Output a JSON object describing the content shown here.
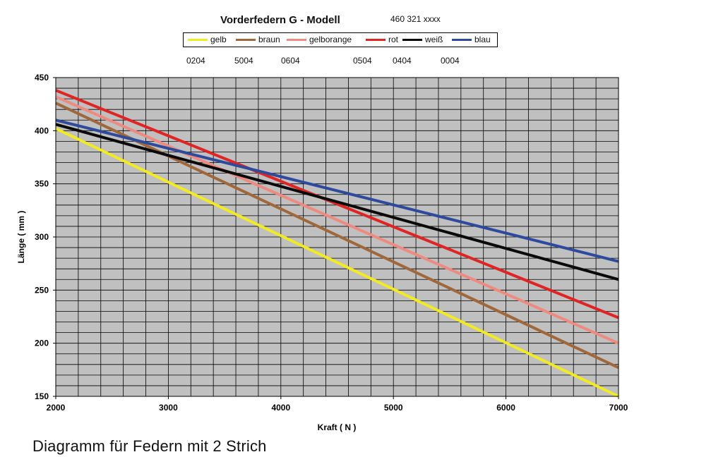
{
  "header": {
    "title": "Vorderfedern G - Modell",
    "part_number": "460 321 xxxx"
  },
  "legend": [
    {
      "label": "gelb",
      "color": "#f2ea22"
    },
    {
      "label": "braun",
      "color": "#a0683a"
    },
    {
      "label": "gelborange",
      "color": "#ef8a80"
    },
    {
      "label": "rot",
      "color": "#e02424"
    },
    {
      "label": "weiß",
      "color": "#0a0a0a"
    },
    {
      "label": "blau",
      "color": "#2e4a9c"
    }
  ],
  "codes": [
    "0204",
    "5004",
    "0604",
    "0504",
    "0404",
    "0004"
  ],
  "chart_data": {
    "type": "line",
    "title": "Vorderfedern G - Modell",
    "xlabel": "Kraft ( N )",
    "ylabel": "Länge ( mm )",
    "xlim": [
      2000,
      7000
    ],
    "ylim": [
      150,
      450
    ],
    "xticks": [
      2000,
      3000,
      4000,
      5000,
      6000,
      7000
    ],
    "yticks": [
      150,
      200,
      250,
      300,
      350,
      400,
      450
    ],
    "grid": true,
    "plot_background": "#c0c0c0",
    "series": [
      {
        "name": "gelb",
        "color": "#f2ea22",
        "x": [
          2000,
          7000
        ],
        "values": [
          402,
          150
        ]
      },
      {
        "name": "braun",
        "color": "#a0683a",
        "x": [
          2000,
          7000
        ],
        "values": [
          426,
          177
        ]
      },
      {
        "name": "gelborange",
        "color": "#ef8a80",
        "x": [
          2000,
          7000
        ],
        "values": [
          432,
          200
        ]
      },
      {
        "name": "rot",
        "color": "#e02424",
        "x": [
          2000,
          7000
        ],
        "values": [
          438,
          224
        ]
      },
      {
        "name": "weiß",
        "color": "#0a0a0a",
        "x": [
          2000,
          7000
        ],
        "values": [
          406,
          260
        ]
      },
      {
        "name": "blau",
        "color": "#2e4a9c",
        "x": [
          2000,
          7000
        ],
        "values": [
          410,
          277
        ]
      }
    ]
  },
  "caption": "Diagramm für Federn mit 2 Strich"
}
